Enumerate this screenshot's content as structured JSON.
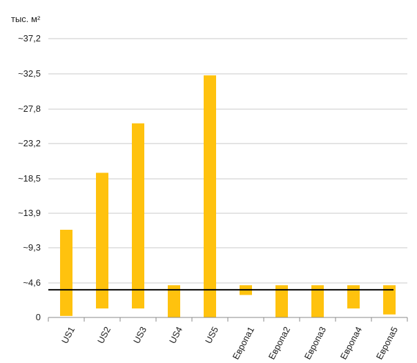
{
  "chart_data": {
    "type": "bar",
    "ylabel": "тыс. м²",
    "ylim": [
      0,
      37.2
    ],
    "yticks": [
      "0",
      "~4,6",
      "~9,3",
      "~13,9",
      "~18,5",
      "~23,2",
      "~27,8",
      "~32,5",
      "~37,2"
    ],
    "ytick_values": [
      0,
      4.6,
      9.3,
      13.9,
      18.5,
      23.2,
      27.8,
      32.5,
      37.2
    ],
    "categories": [
      "US1",
      "US2",
      "US3",
      "US4",
      "US5",
      "Европа1",
      "Европа2",
      "Европа3",
      "Европа4",
      "Европа5"
    ],
    "bars": [
      {
        "low": 0.2,
        "high": 11.7
      },
      {
        "low": 1.2,
        "high": 19.3
      },
      {
        "low": 1.2,
        "high": 25.9
      },
      {
        "low": 0.0,
        "high": 4.3
      },
      {
        "low": 0.0,
        "high": 32.3
      },
      {
        "low": 3.0,
        "high": 4.3
      },
      {
        "low": 0.0,
        "high": 4.3
      },
      {
        "low": 0.0,
        "high": 4.3
      },
      {
        "low": 1.2,
        "high": 4.3
      },
      {
        "low": 0.4,
        "high": 4.3
      }
    ],
    "reference_line": 3.7,
    "grid": "horizontal",
    "colors": {
      "bar": "#FFC20E",
      "grid": "#c9c9c9",
      "reference_line": "#000000",
      "axis": "#888888"
    }
  }
}
